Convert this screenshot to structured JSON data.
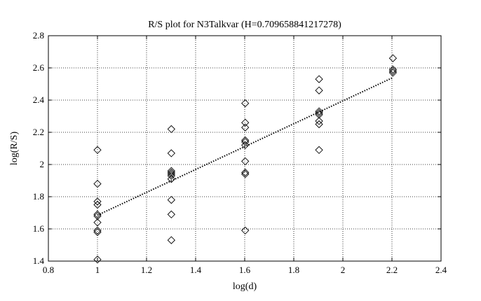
{
  "chart_data": {
    "type": "scatter",
    "title": "R/S plot for N3Talkvar (H=0.709658841217278)",
    "xlabel": "log(d)",
    "ylabel": "log(R/S)",
    "xlim": [
      0.8,
      2.4
    ],
    "ylim": [
      1.4,
      2.8
    ],
    "xticks": [
      0.8,
      1,
      1.2,
      1.4,
      1.6,
      1.8,
      2,
      2.2,
      2.4
    ],
    "yticks": [
      1.4,
      1.6,
      1.8,
      2,
      2.2,
      2.4,
      2.6,
      2.8
    ],
    "xtick_labels": [
      "0.8",
      "1",
      "1.2",
      "1.4",
      "1.6",
      "1.8",
      "2",
      "2.2",
      "2.4"
    ],
    "ytick_labels": [
      "1.4",
      "1.6",
      "1.8",
      "2",
      "2.2",
      "2.4",
      "2.6",
      "2.8"
    ],
    "grid": true,
    "marker": "diamond",
    "series": [
      {
        "points": [
          [
            1.0,
            2.09
          ],
          [
            1.0,
            1.88
          ],
          [
            1.0,
            1.77
          ],
          [
            1.0,
            1.75
          ],
          [
            1.0,
            1.69
          ],
          [
            1.0,
            1.68
          ],
          [
            1.0,
            1.64
          ],
          [
            1.0,
            1.59
          ],
          [
            1.0,
            1.58
          ],
          [
            1.0,
            1.41
          ],
          [
            1.301,
            2.22
          ],
          [
            1.301,
            2.07
          ],
          [
            1.301,
            1.96
          ],
          [
            1.301,
            1.95
          ],
          [
            1.301,
            1.94
          ],
          [
            1.301,
            1.93
          ],
          [
            1.301,
            1.91
          ],
          [
            1.301,
            1.78
          ],
          [
            1.301,
            1.69
          ],
          [
            1.301,
            1.53
          ],
          [
            1.602,
            2.38
          ],
          [
            1.602,
            2.26
          ],
          [
            1.602,
            2.23
          ],
          [
            1.602,
            2.15
          ],
          [
            1.602,
            2.14
          ],
          [
            1.602,
            2.12
          ],
          [
            1.602,
            2.02
          ],
          [
            1.602,
            1.95
          ],
          [
            1.602,
            1.94
          ],
          [
            1.602,
            1.59
          ],
          [
            1.903,
            2.53
          ],
          [
            1.903,
            2.46
          ],
          [
            1.903,
            2.33
          ],
          [
            1.903,
            2.32
          ],
          [
            1.903,
            2.31
          ],
          [
            1.903,
            2.27
          ],
          [
            1.903,
            2.25
          ],
          [
            1.903,
            2.09
          ],
          [
            2.204,
            2.66
          ],
          [
            2.204,
            2.59
          ],
          [
            2.204,
            2.58
          ],
          [
            2.204,
            2.57
          ]
        ]
      }
    ],
    "fit_line": {
      "x": [
        1.0,
        2.204
      ],
      "y": [
        1.685,
        2.54
      ],
      "style": "dotted"
    }
  }
}
